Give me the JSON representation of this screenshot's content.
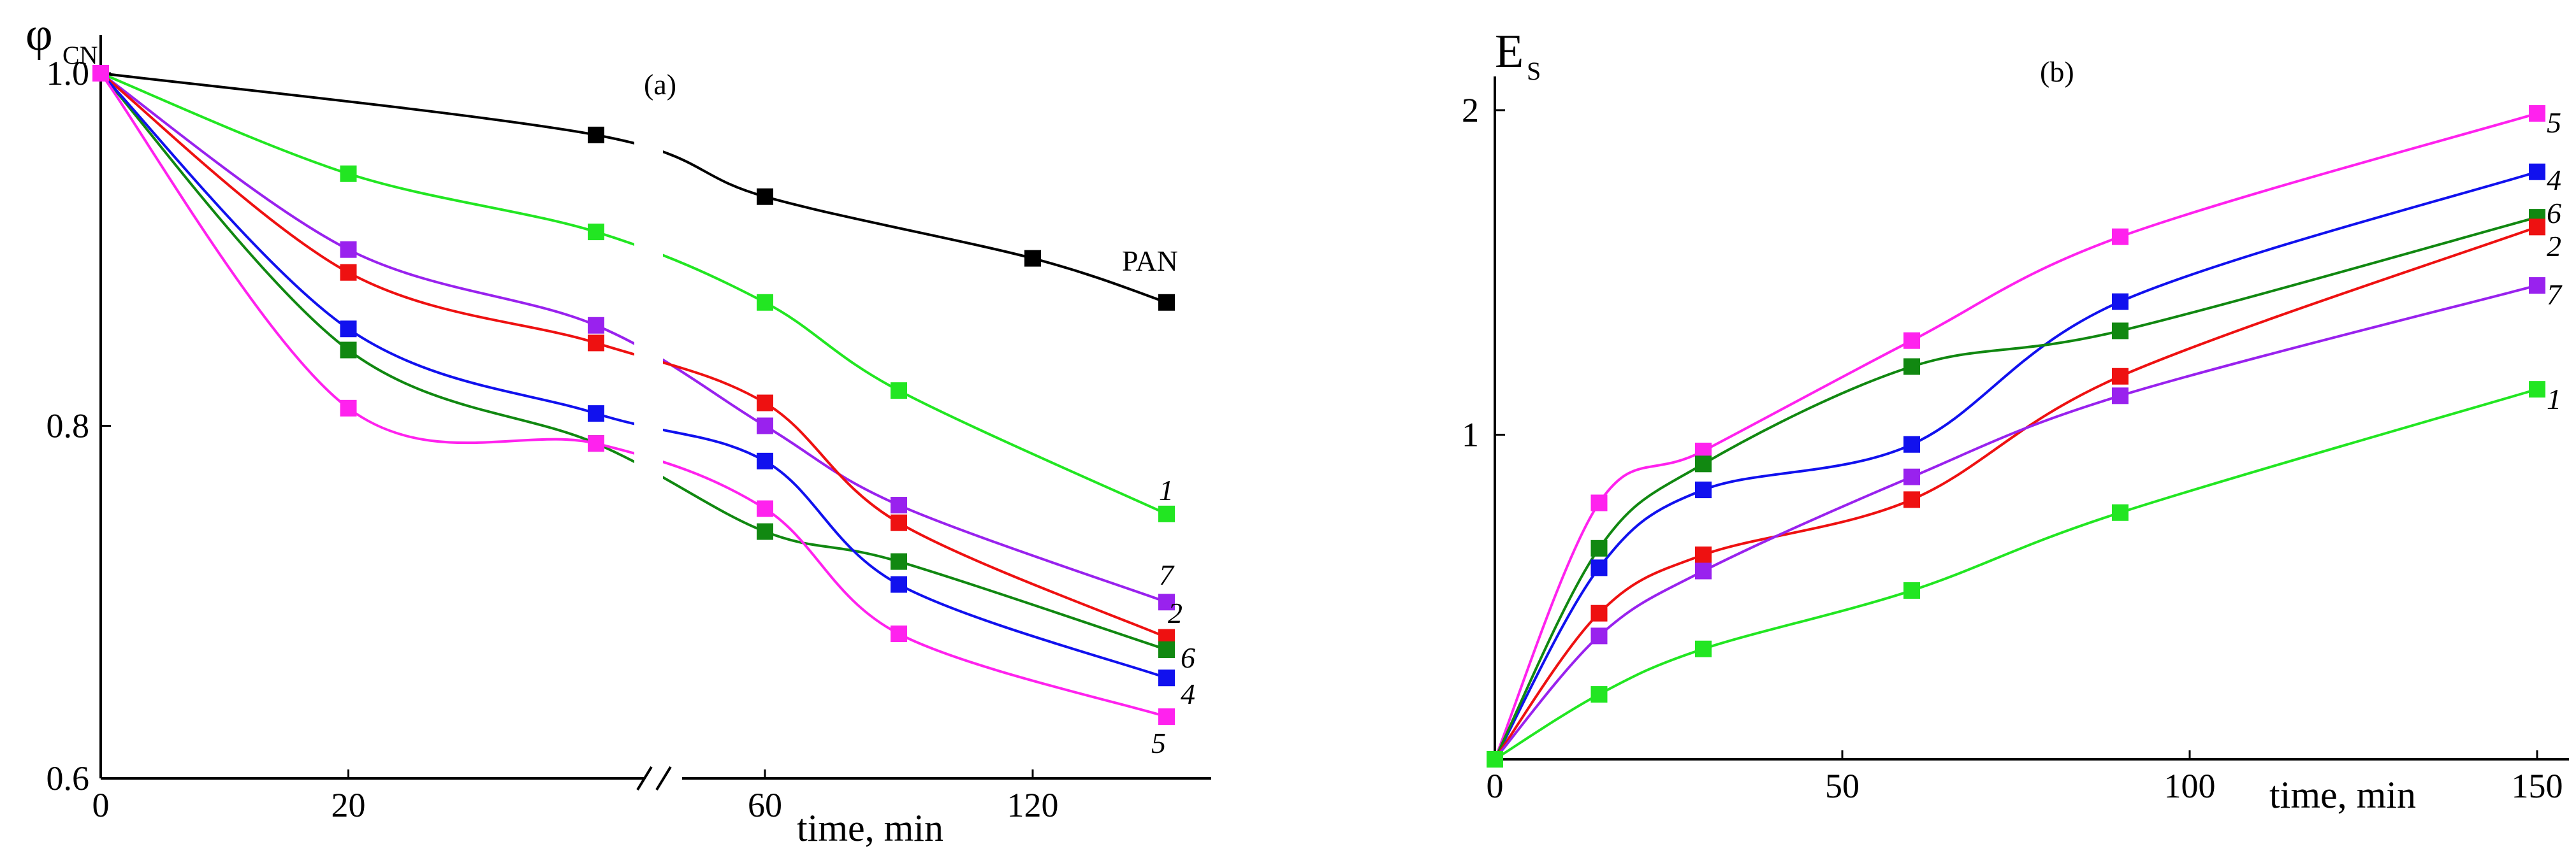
{
  "colors": {
    "PAN": "#000000",
    "1": "#22e622",
    "2": "#ee1111",
    "4": "#1111ee",
    "5": "#ff22ee",
    "6": "#118811",
    "7": "#9922ee"
  },
  "chart_data": [
    {
      "type": "scatter",
      "panel_label": "(a)",
      "ylabel_symbol": "φ",
      "ylabel_subscript": "CN",
      "xlabel": "time, min",
      "axis_break": true,
      "x_ticks": [
        "0",
        "20",
        "60",
        "120"
      ],
      "y_ticks": [
        "0.6",
        "0.8",
        "1.0"
      ],
      "ylim": [
        0.6,
        1.0
      ],
      "series": [
        {
          "name": "PAN",
          "label": "PAN",
          "x": [
            0,
            40,
            60,
            120,
            150
          ],
          "y": [
            1.0,
            0.965,
            0.93,
            0.895,
            0.87
          ]
        },
        {
          "name": "1",
          "label": "1",
          "x": [
            0,
            20,
            40,
            60,
            90,
            150
          ],
          "y": [
            1.0,
            0.943,
            0.91,
            0.87,
            0.82,
            0.75
          ]
        },
        {
          "name": "7",
          "label": "7",
          "x": [
            0,
            20,
            40,
            60,
            90,
            150
          ],
          "y": [
            1.0,
            0.9,
            0.857,
            0.8,
            0.755,
            0.7
          ]
        },
        {
          "name": "2",
          "label": "2",
          "x": [
            0,
            20,
            40,
            60,
            90,
            150
          ],
          "y": [
            1.0,
            0.887,
            0.847,
            0.813,
            0.745,
            0.68
          ]
        },
        {
          "name": "6",
          "label": "6",
          "x": [
            0,
            20,
            40,
            60,
            90,
            150
          ],
          "y": [
            1.0,
            0.843,
            0.79,
            0.74,
            0.723,
            0.673
          ]
        },
        {
          "name": "4",
          "label": "4",
          "x": [
            0,
            20,
            40,
            60,
            90,
            150
          ],
          "y": [
            1.0,
            0.855,
            0.807,
            0.78,
            0.71,
            0.657
          ]
        },
        {
          "name": "5",
          "label": "5",
          "x": [
            0,
            20,
            40,
            60,
            90,
            150
          ],
          "y": [
            1.0,
            0.81,
            0.79,
            0.753,
            0.682,
            0.635
          ]
        }
      ]
    },
    {
      "type": "scatter",
      "panel_label": "(b)",
      "ylabel_symbol": "E",
      "ylabel_subscript": "S",
      "xlabel": "time, min",
      "x_ticks": [
        "0",
        "50",
        "100",
        "150"
      ],
      "y_ticks": [
        "1",
        "2"
      ],
      "xlim": [
        0,
        150
      ],
      "ylim": [
        0,
        2.1
      ],
      "series": [
        {
          "name": "5",
          "label": "5",
          "x": [
            0,
            15,
            30,
            60,
            90,
            150
          ],
          "y": [
            0,
            0.79,
            0.95,
            1.29,
            1.61,
            1.99
          ]
        },
        {
          "name": "4",
          "label": "4",
          "x": [
            0,
            15,
            30,
            60,
            90,
            150
          ],
          "y": [
            0,
            0.59,
            0.83,
            0.97,
            1.41,
            1.81
          ]
        },
        {
          "name": "6",
          "label": "6",
          "x": [
            0,
            15,
            30,
            60,
            90,
            150
          ],
          "y": [
            0,
            0.65,
            0.91,
            1.21,
            1.32,
            1.67
          ]
        },
        {
          "name": "2",
          "label": "2",
          "x": [
            0,
            15,
            30,
            60,
            90,
            150
          ],
          "y": [
            0,
            0.45,
            0.63,
            0.8,
            1.18,
            1.64
          ]
        },
        {
          "name": "7",
          "label": "7",
          "x": [
            0,
            15,
            30,
            60,
            90,
            150
          ],
          "y": [
            0,
            0.38,
            0.58,
            0.87,
            1.12,
            1.46
          ]
        },
        {
          "name": "1",
          "label": "1",
          "x": [
            0,
            15,
            30,
            60,
            90,
            150
          ],
          "y": [
            0,
            0.2,
            0.34,
            0.52,
            0.76,
            1.14
          ]
        }
      ]
    }
  ]
}
